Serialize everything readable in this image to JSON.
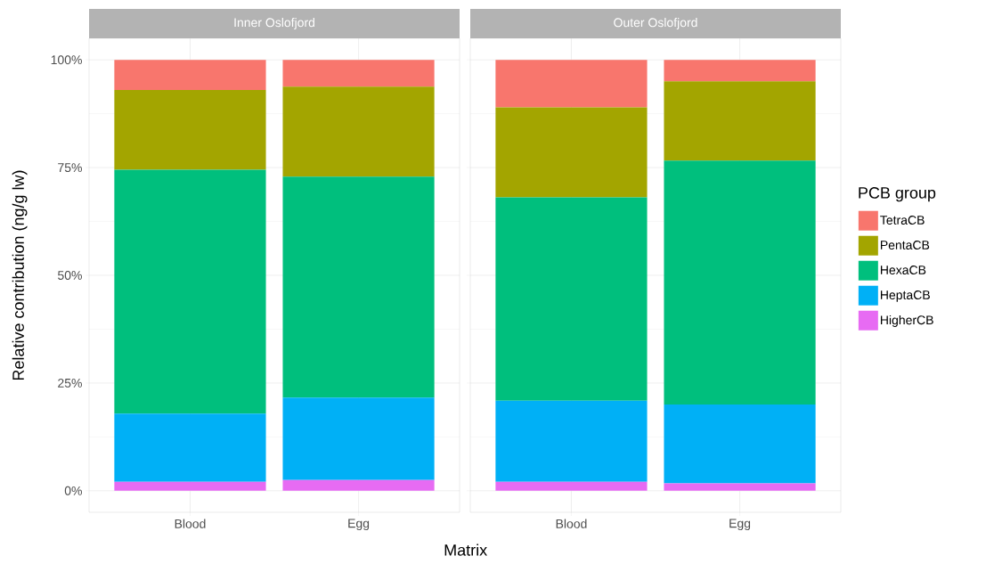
{
  "chart_data": [
    {
      "type": "bar",
      "title": "Inner Oslofjord",
      "ylabel": "Relative contribution (ng/g lw)",
      "xlabel": "Matrix",
      "categories": [
        "Blood",
        "Egg"
      ],
      "stacked": true,
      "grid": true,
      "ylim": [
        -5,
        105
      ],
      "yticks": [
        {
          "value": 0,
          "label": "0%"
        },
        {
          "value": 25,
          "label": "25%"
        },
        {
          "value": 50,
          "label": "50%"
        },
        {
          "value": 75,
          "label": "75%"
        },
        {
          "value": 100,
          "label": "100%"
        }
      ],
      "series": [
        {
          "color": "#e76bf3",
          "values": [
            2.1,
            2.5
          ]
        },
        {
          "color": "#00b0f6",
          "values": [
            15.8,
            19.1
          ]
        },
        {
          "color": "#00bf7d",
          "values": [
            56.6,
            51.3
          ]
        },
        {
          "color": "#a3a500",
          "values": [
            18.5,
            20.9
          ]
        },
        {
          "color": "#f8766d",
          "values": [
            7.0,
            6.2
          ]
        }
      ]
    },
    {
      "type": "bar",
      "title": "Outer Oslofjord",
      "categories": [
        "Blood",
        "Egg"
      ],
      "stacked": true,
      "grid": true,
      "tick_labels": "x",
      "legend": "right",
      "legend_title": "PCB group",
      "ylim": [
        -5,
        105
      ],
      "yticks": [
        0,
        25,
        50,
        75,
        100
      ],
      "series": [
        {
          "name": "HigherCB",
          "color": "#e76bf3",
          "values": [
            2.1,
            1.7
          ]
        },
        {
          "name": "HeptaCB",
          "color": "#00b0f6",
          "values": [
            18.8,
            18.3
          ]
        },
        {
          "name": "HexaCB",
          "color": "#00bf7d",
          "values": [
            47.2,
            56.6
          ]
        },
        {
          "name": "PentaCB",
          "color": "#a3a500",
          "values": [
            20.9,
            18.4
          ]
        },
        {
          "name": "TetraCB",
          "color": "#f8766d",
          "values": [
            11.0,
            5.0
          ]
        }
      ]
    }
  ]
}
